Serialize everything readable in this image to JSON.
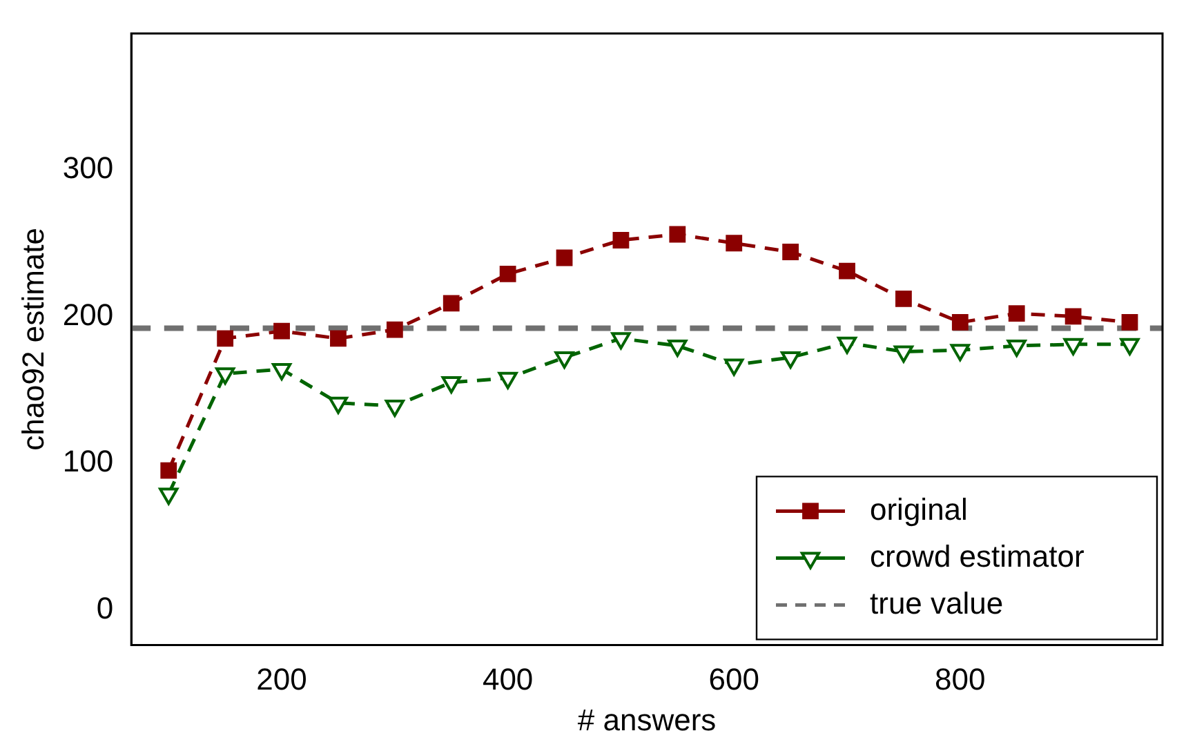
{
  "chart_data": {
    "type": "line",
    "xlabel": "# answers",
    "ylabel": "chao92 estimate",
    "x": [
      100,
      150,
      200,
      250,
      300,
      350,
      400,
      450,
      500,
      550,
      600,
      650,
      700,
      750,
      800,
      850,
      900,
      950
    ],
    "xlim": [
      67,
      979
    ],
    "xticks": [
      200,
      400,
      600,
      800
    ],
    "ylim": [
      -24,
      393
    ],
    "yticks": [
      0,
      100,
      200,
      300
    ],
    "series": [
      {
        "name": "original",
        "color": "#8b0000",
        "marker": "square",
        "line_style": "dashed",
        "values": [
          95,
          185,
          190,
          185,
          191,
          209,
          229,
          240,
          252,
          256,
          250,
          244,
          231,
          212,
          196,
          202,
          200,
          196
        ]
      },
      {
        "name": "crowd estimator",
        "color": "#006400",
        "marker": "triangle",
        "line_style": "dashed",
        "values": [
          79,
          161,
          164,
          141,
          139,
          155,
          158,
          172,
          185,
          180,
          167,
          172,
          182,
          176,
          177,
          180,
          181,
          181
        ]
      }
    ],
    "ref_lines": [
      {
        "axis": "y",
        "value": 192,
        "label": "true value",
        "color": "#707070",
        "line_style": "dashed"
      }
    ],
    "grid": false,
    "legend": "bottom right"
  }
}
